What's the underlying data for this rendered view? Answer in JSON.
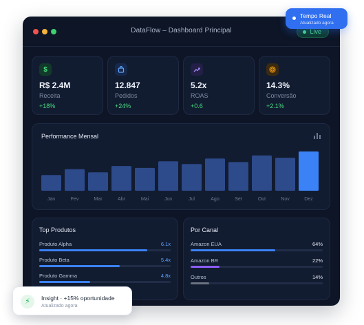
{
  "window": {
    "title": "DataFlow – Dashboard Principal",
    "live_label": "Live"
  },
  "kpis": [
    {
      "icon": "dollar-icon",
      "icon_glyph": "$",
      "icon_color": "#4ade80",
      "icon_bg": "#123a2a",
      "value": "R$ 2.4M",
      "label": "Receita",
      "change": "+18%"
    },
    {
      "icon": "shopping-bag-icon",
      "icon_glyph": "",
      "icon_color": "#60a5fa",
      "icon_bg": "#16294d",
      "value": "12.847",
      "label": "Pedidos",
      "change": "+24%"
    },
    {
      "icon": "trending-up-icon",
      "icon_glyph": "",
      "icon_color": "#a78bfa",
      "icon_bg": "#231f46",
      "value": "5.2x",
      "label": "ROAS",
      "change": "+0.6"
    },
    {
      "icon": "target-icon",
      "icon_glyph": "",
      "icon_color": "#f59e0b",
      "icon_bg": "#3a2a12",
      "value": "14.3%",
      "label": "Conversão",
      "change": "+2.1%"
    }
  ],
  "performance": {
    "title": "Performance Mensal",
    "icon": "bar-chart-icon"
  },
  "chart_data": {
    "type": "bar",
    "title": "Performance Mensal",
    "categories": [
      "Jan",
      "Fev",
      "Mar",
      "Abr",
      "Mai",
      "Jun",
      "Jul",
      "Ago",
      "Set",
      "Out",
      "Nov",
      "Dez"
    ],
    "values": [
      40,
      55,
      47,
      63,
      58,
      75,
      68,
      82,
      73,
      90,
      84,
      100
    ],
    "ylim": [
      0,
      100
    ],
    "grid": false,
    "bar_color": "#2d4a8a",
    "highlight_color": "#3b82f6"
  },
  "top_products": {
    "title": "Top Produtos",
    "bar_color": "#3b82f6",
    "items": [
      {
        "name": "Produto Alpha",
        "value": "6.1x",
        "ratio": 0.82
      },
      {
        "name": "Produto Beta",
        "value": "5.4x",
        "ratio": 0.61
      },
      {
        "name": "Produto Gamma",
        "value": "4.8x",
        "ratio": 0.39
      }
    ]
  },
  "channels": {
    "title": "Por Canal",
    "items": [
      {
        "name": "Amazon EUA",
        "value": "64%",
        "ratio": 0.64,
        "color": "#3b82f6"
      },
      {
        "name": "Amazon BR",
        "value": "22%",
        "ratio": 0.22,
        "color": "#8b5cf6"
      },
      {
        "name": "Outros",
        "value": "14%",
        "ratio": 0.14,
        "color": "#6b7280"
      }
    ]
  },
  "toast": {
    "title": "Tempo Real",
    "subtitle": "Atualizado agora"
  },
  "insight": {
    "icon": "lightning-icon",
    "icon_glyph": "⚡",
    "title": "Insight · +15% oportunidade",
    "subtitle": "Atualizado agora"
  }
}
